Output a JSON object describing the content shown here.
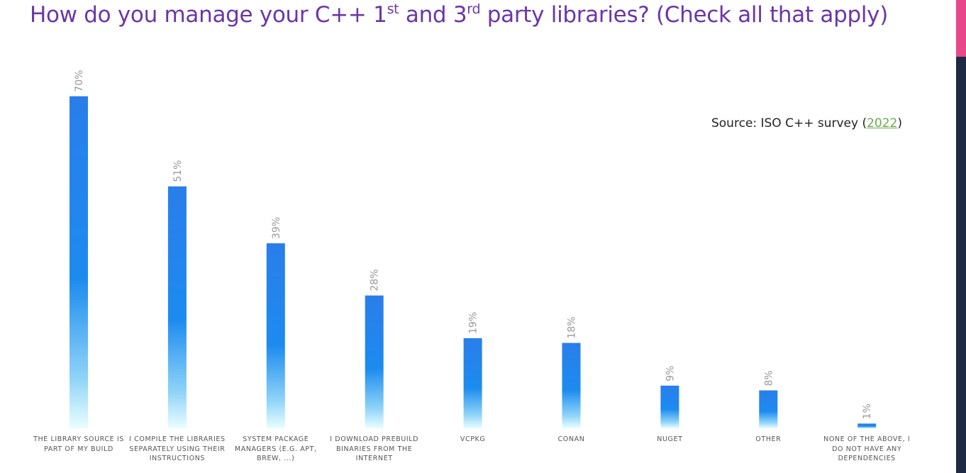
{
  "chart_data": {
    "type": "bar",
    "title": [
      "How do you manage your C++ 1",
      "st",
      " and 3",
      "rd",
      " party libraries? (Check all that apply)"
    ],
    "source": [
      "Source: ISO C++ survey (",
      "2022",
      ")"
    ],
    "categories": [
      "THE LIBRARY SOURCE IS PART OF MY BUILD",
      "I COMPILE THE LIBRARIES SEPARATELY USING THEIR INSTRUCTIONS",
      "SYSTEM PACKAGE MANAGERS (E.G. APT, BREW, ...)",
      "I DOWNLOAD PREBUILD BINARIES FROM THE INTERNET",
      "VCPKG",
      "CONAN",
      "NUGET",
      "OTHER",
      "NONE OF THE ABOVE, I DO NOT HAVE ANY DEPENDENCIES"
    ],
    "values": [
      70,
      51,
      39,
      28,
      19,
      18,
      9,
      8,
      1
    ],
    "value_labels": [
      "70%",
      "51%",
      "39%",
      "28%",
      "19%",
      "18%",
      "9%",
      "8%",
      "1%"
    ],
    "color": "#2a7eea"
  }
}
